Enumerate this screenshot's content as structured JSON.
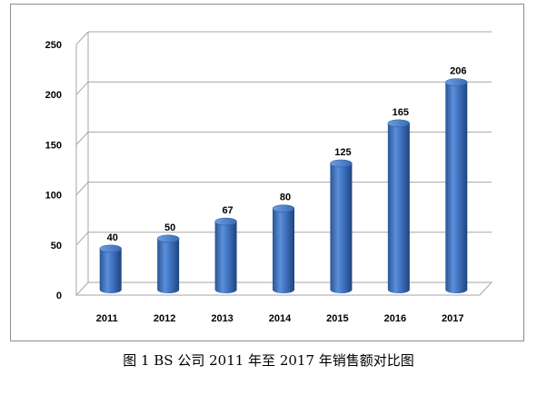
{
  "chart_data": {
    "type": "bar",
    "categories": [
      "2011",
      "2012",
      "2013",
      "2014",
      "2015",
      "2016",
      "2017"
    ],
    "values": [
      40,
      50,
      67,
      80,
      125,
      165,
      206
    ],
    "ylim": [
      0,
      250
    ],
    "yticks": [
      0,
      50,
      100,
      150,
      200,
      250
    ],
    "grid": true,
    "legend": "none",
    "bar_color": "#3a6fbf"
  },
  "caption": "图 1   BS 公司 2011 年至 2017 年销售额对比图"
}
